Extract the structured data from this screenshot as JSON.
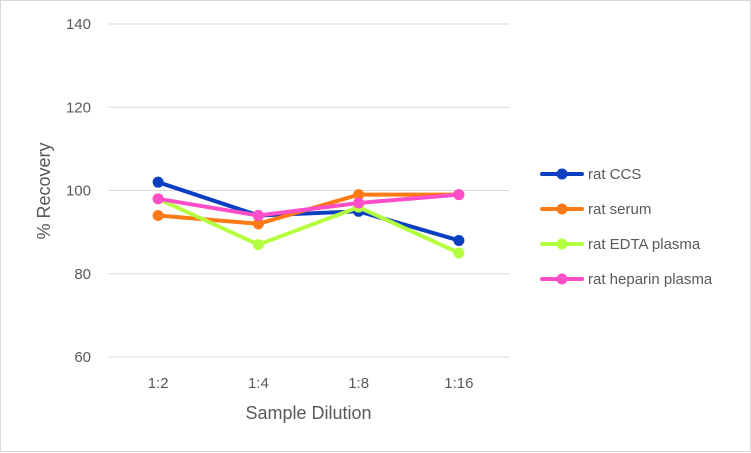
{
  "chart_data": {
    "type": "line",
    "title": "",
    "xlabel": "Sample Dilution",
    "ylabel": "% Recovery",
    "categories": [
      "1:2",
      "1:4",
      "1:8",
      "1:16"
    ],
    "ylim": [
      60,
      140
    ],
    "yticks": [
      60,
      80,
      100,
      120,
      140
    ],
    "grid": true,
    "legend_position": "right",
    "series": [
      {
        "name": "rat CCS",
        "color": "#0b3fc2",
        "values": [
          102,
          94,
          95,
          88
        ]
      },
      {
        "name": "rat serum",
        "color": "#ff7a14",
        "values": [
          94,
          92,
          99,
          99
        ]
      },
      {
        "name": "rat EDTA plasma",
        "color": "#b4ff40",
        "values": [
          98,
          87,
          96,
          85
        ]
      },
      {
        "name": "rat heparin plasma",
        "color": "#ff4fc8",
        "values": [
          98,
          94,
          97,
          99
        ]
      }
    ]
  }
}
